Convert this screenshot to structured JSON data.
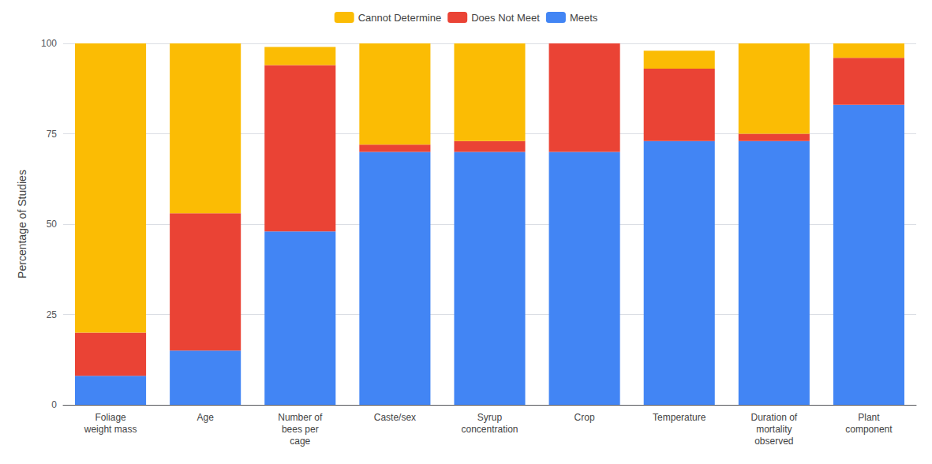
{
  "chart_data": {
    "type": "bar",
    "stacked": true,
    "categories": [
      "Foliage\nweight mass",
      "Age",
      "Number of\nbees per\ncage",
      "Caste/sex",
      "Syrup\nconcentration",
      "Crop",
      "Temperature",
      "Duration of\nmortality\nobserved",
      "Plant\ncomponent"
    ],
    "series": [
      {
        "name": "Meets",
        "color": "#4285F4",
        "values": [
          8,
          15,
          48,
          70,
          70,
          70,
          73,
          73,
          83
        ]
      },
      {
        "name": "Does Not Meet",
        "color": "#EA4335",
        "values": [
          12,
          38,
          46,
          2,
          3,
          30,
          20,
          2,
          13
        ]
      },
      {
        "name": "Cannot Determine",
        "color": "#FBBC04",
        "values": [
          80,
          47,
          5,
          28,
          27,
          0,
          5,
          25,
          4
        ]
      }
    ],
    "ylabel": "Percentage of Studies",
    "ylim": [
      0,
      100
    ],
    "yticks": [
      0,
      25,
      50,
      75,
      100
    ],
    "grid": true,
    "legend": "top"
  }
}
